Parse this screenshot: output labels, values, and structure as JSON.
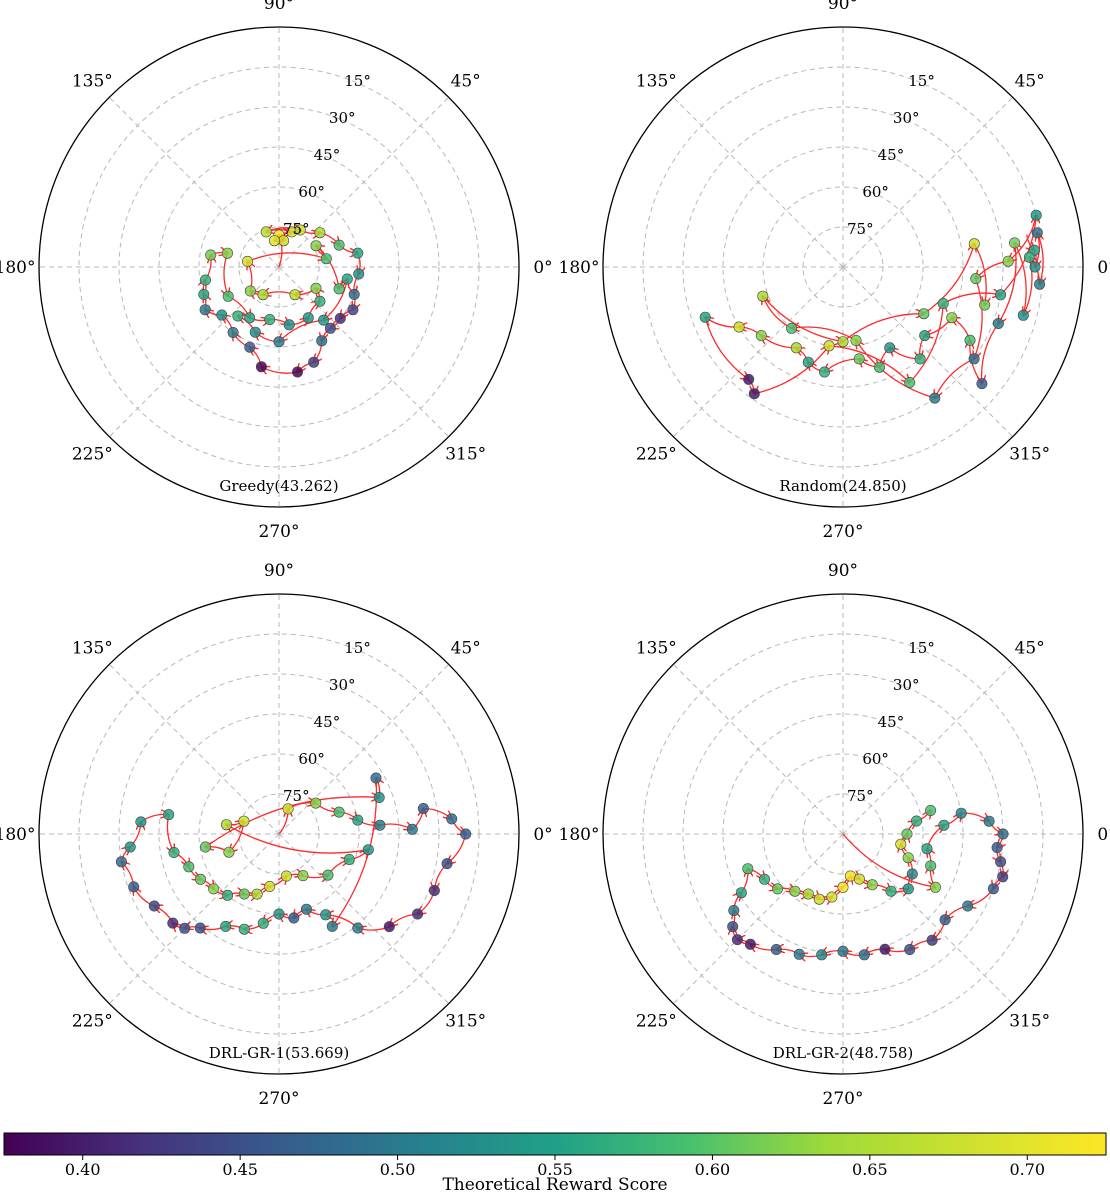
{
  "chart_data": {
    "type": "polar-scatter-trajectory",
    "angle_tick_labels": [
      "0°",
      "45°",
      "90°",
      "135°",
      "180°",
      "225°",
      "270°",
      "315°"
    ],
    "elevation_ring_labels": [
      "15°",
      "30°",
      "45°",
      "60°",
      "75°"
    ],
    "colorbar": {
      "label": "Theoretical Reward Score",
      "range": [
        0.375,
        0.725
      ],
      "ticks": [
        "0.40",
        "0.45",
        "0.50",
        "0.55",
        "0.60",
        "0.65",
        "0.70"
      ],
      "tick_values": [
        0.4,
        0.45,
        0.5,
        0.55,
        0.6,
        0.65,
        0.7
      ],
      "colormap": "viridis"
    },
    "panels": [
      {
        "name": "greedy",
        "title": "Greedy(43.262)",
        "start": [
          90,
          90
        ],
        "points": [
          [
            90,
            78,
            0.72
          ],
          [
            80,
            80,
            0.7
          ],
          [
            100,
            80,
            0.71
          ],
          [
            70,
            76,
            0.7
          ],
          [
            110,
            76,
            0.69
          ],
          [
            60,
            74,
            0.7
          ],
          [
            40,
            70,
            0.68
          ],
          [
            20,
            66,
            0.62
          ],
          [
            10,
            60,
            0.58
          ],
          [
            -5,
            60,
            0.55
          ],
          [
            -20,
            60,
            0.5
          ],
          [
            -30,
            58,
            0.45
          ],
          [
            -40,
            60,
            0.42
          ],
          [
            -50,
            60,
            0.46
          ],
          [
            -60,
            58,
            0.5
          ],
          [
            -70,
            52,
            0.44
          ],
          [
            -80,
            50,
            0.38
          ],
          [
            -100,
            52,
            0.38
          ],
          [
            -110,
            58,
            0.48
          ],
          [
            -125,
            60,
            0.52
          ],
          [
            -140,
            62,
            0.55
          ],
          [
            -150,
            58,
            0.52
          ],
          [
            -160,
            60,
            0.58
          ],
          [
            -170,
            62,
            0.6
          ],
          [
            170,
            64,
            0.65
          ],
          [
            165,
            70,
            0.66
          ],
          [
            -150,
            68,
            0.62
          ],
          [
            -120,
            68,
            0.58
          ],
          [
            -100,
            70,
            0.6
          ],
          [
            -80,
            68,
            0.55
          ],
          [
            -60,
            68,
            0.56
          ],
          [
            -40,
            70,
            0.6
          ],
          [
            -30,
            74,
            0.66
          ],
          [
            -60,
            78,
            0.69
          ],
          [
            -120,
            78,
            0.68
          ],
          [
            -140,
            76,
            0.66
          ],
          [
            170,
            78,
            0.7
          ],
          [
            10,
            72,
            0.62
          ],
          [
            30,
            74,
            0.66
          ],
          [
            -20,
            66,
            0.62
          ],
          [
            -10,
            64,
            0.58
          ],
          [
            -50,
            64,
            0.56
          ],
          [
            -90,
            62,
            0.52
          ],
          [
            -110,
            64,
            0.55
          ],
          [
            -130,
            66,
            0.6
          ]
        ]
      },
      {
        "name": "random",
        "title": "Random(24.850)",
        "start": [
          10,
          20
        ],
        "points": [
          [
            5,
            18,
            0.58
          ],
          [
            0,
            18,
            0.55
          ],
          [
            10,
            16,
            0.5
          ],
          [
            -5,
            16,
            0.52
          ],
          [
            3,
            20,
            0.6
          ],
          [
            -15,
            20,
            0.55
          ],
          [
            8,
            25,
            0.65
          ],
          [
            -20,
            28,
            0.52
          ],
          [
            -40,
            22,
            0.48
          ],
          [
            -30,
            35,
            0.62
          ],
          [
            -25,
            45,
            0.66
          ],
          [
            -40,
            50,
            0.58
          ],
          [
            -50,
            45,
            0.6
          ],
          [
            -60,
            55,
            0.56
          ],
          [
            -70,
            50,
            0.62
          ],
          [
            -80,
            55,
            0.64
          ],
          [
            -100,
            50,
            0.6
          ],
          [
            -110,
            52,
            0.58
          ],
          [
            -120,
            55,
            0.68
          ],
          [
            -140,
            50,
            0.66
          ],
          [
            -150,
            45,
            0.7
          ],
          [
            -160,
            35,
            0.58
          ],
          [
            -130,
            35,
            0.4
          ],
          [
            -125,
            32,
            0.4
          ],
          [
            -100,
            60,
            0.7
          ],
          [
            -60,
            40,
            0.62
          ],
          [
            -20,
            50,
            0.6
          ],
          [
            -10,
            30,
            0.58
          ],
          [
            15,
            15,
            0.56
          ],
          [
            2,
            28,
            0.66
          ],
          [
            -5,
            40,
            0.64
          ],
          [
            -35,
            30,
            0.5
          ],
          [
            -55,
            30,
            0.52
          ],
          [
            -80,
            62,
            0.66
          ],
          [
            -130,
            60,
            0.62
          ],
          [
            -160,
            58,
            0.68
          ],
          [
            -90,
            62,
            0.68
          ],
          [
            -30,
            55,
            0.64
          ],
          [
            10,
            40,
            0.7
          ],
          [
            -15,
            35,
            0.65
          ]
        ]
      },
      {
        "name": "drl-gr-1",
        "title": "DRL-GR-1(53.669)",
        "start": [
          90,
          90
        ],
        "points": [
          [
            70,
            80,
            0.7
          ],
          [
            40,
            72,
            0.66
          ],
          [
            20,
            66,
            0.62
          ],
          [
            10,
            60,
            0.58
          ],
          [
            5,
            52,
            0.52
          ],
          [
            2,
            40,
            0.52
          ],
          [
            10,
            35,
            0.48
          ],
          [
            5,
            25,
            0.5
          ],
          [
            0,
            20,
            0.48
          ],
          [
            -10,
            26,
            0.46
          ],
          [
            -20,
            28,
            0.42
          ],
          [
            -30,
            30,
            0.42
          ],
          [
            -40,
            36,
            0.4
          ],
          [
            -50,
            44,
            0.52
          ],
          [
            -60,
            55,
            0.56
          ],
          [
            -70,
            60,
            0.52
          ],
          [
            -80,
            58,
            0.48
          ],
          [
            -90,
            60,
            0.56
          ],
          [
            -100,
            56,
            0.6
          ],
          [
            -110,
            52,
            0.6
          ],
          [
            -120,
            50,
            0.58
          ],
          [
            -130,
            44,
            0.46
          ],
          [
            -135,
            40,
            0.46
          ],
          [
            -140,
            38,
            0.42
          ],
          [
            -150,
            36,
            0.45
          ],
          [
            -160,
            32,
            0.48
          ],
          [
            -170,
            30,
            0.5
          ],
          [
            -175,
            34,
            0.56
          ],
          [
            175,
            38,
            0.56
          ],
          [
            170,
            48,
            0.58
          ],
          [
            -170,
            50,
            0.6
          ],
          [
            -160,
            54,
            0.62
          ],
          [
            -150,
            56,
            0.64
          ],
          [
            -140,
            58,
            0.66
          ],
          [
            -130,
            60,
            0.6
          ],
          [
            -120,
            64,
            0.64
          ],
          [
            -110,
            66,
            0.68
          ],
          [
            -100,
            70,
            0.7
          ],
          [
            -80,
            74,
            0.7
          ],
          [
            -60,
            72,
            0.66
          ],
          [
            -40,
            66,
            0.62
          ],
          [
            -20,
            62,
            0.6
          ],
          [
            -10,
            56,
            0.56
          ],
          [
            170,
            70,
            0.68
          ],
          [
            160,
            76,
            0.7
          ],
          [
            -160,
            70,
            0.66
          ],
          [
            -170,
            62,
            0.64
          ],
          [
            20,
            50,
            0.55
          ],
          [
            30,
            48,
            0.5
          ],
          [
            -60,
            50,
            0.52
          ]
        ]
      },
      {
        "name": "drl-gr-2",
        "title": "DRL-GR-2(48.758)",
        "start": [
          135,
          90
        ],
        "points": [
          [
            -30,
            50,
            0.66
          ],
          [
            -20,
            55,
            0.62
          ],
          [
            -10,
            58,
            0.58
          ],
          [
            5,
            52,
            0.58
          ],
          [
            10,
            45,
            0.54
          ],
          [
            5,
            35,
            0.52
          ],
          [
            0,
            30,
            0.5
          ],
          [
            -5,
            32,
            0.48
          ],
          [
            -10,
            30,
            0.46
          ],
          [
            -15,
            28,
            0.44
          ],
          [
            -20,
            30,
            0.48
          ],
          [
            -30,
            36,
            0.52
          ],
          [
            -40,
            40,
            0.48
          ],
          [
            -50,
            38,
            0.44
          ],
          [
            -60,
            40,
            0.46
          ],
          [
            -70,
            44,
            0.4
          ],
          [
            -80,
            44,
            0.5
          ],
          [
            -90,
            46,
            0.52
          ],
          [
            -100,
            44,
            0.54
          ],
          [
            -110,
            42,
            0.52
          ],
          [
            -120,
            40,
            0.48
          ],
          [
            -130,
            36,
            0.4
          ],
          [
            -135,
            34,
            0.42
          ],
          [
            -140,
            36,
            0.46
          ],
          [
            -145,
            40,
            0.52
          ],
          [
            -150,
            46,
            0.58
          ],
          [
            -160,
            52,
            0.62
          ],
          [
            -150,
            56,
            0.6
          ],
          [
            -140,
            58,
            0.64
          ],
          [
            -130,
            62,
            0.66
          ],
          [
            -120,
            64,
            0.68
          ],
          [
            -110,
            64,
            0.7
          ],
          [
            -100,
            66,
            0.7
          ],
          [
            -90,
            70,
            0.72
          ],
          [
            -80,
            74,
            0.72
          ],
          [
            -70,
            72,
            0.7
          ],
          [
            -60,
            68,
            0.66
          ],
          [
            -50,
            62,
            0.6
          ],
          [
            -40,
            58,
            0.56
          ],
          [
            -30,
            60,
            0.54
          ],
          [
            -20,
            64,
            0.66
          ],
          [
            -10,
            68,
            0.7
          ],
          [
            0,
            66,
            0.64
          ],
          [
            10,
            62,
            0.6
          ],
          [
            15,
            56,
            0.62
          ]
        ]
      }
    ]
  }
}
